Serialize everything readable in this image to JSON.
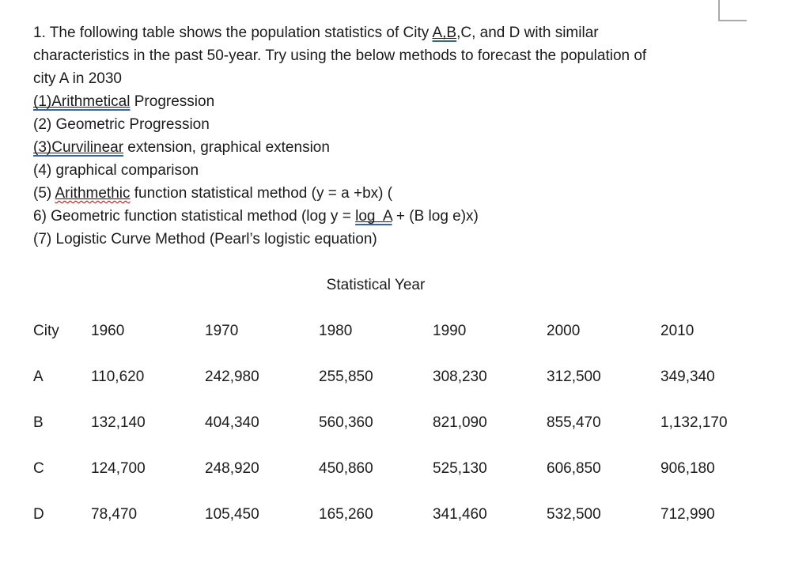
{
  "page": {
    "background": "#ffffff",
    "text_color": "#1b1b1b"
  },
  "colors": {
    "grammar_underline": "#3565a9",
    "spelling_squiggle": "#c00000",
    "corner_mark": "#a9a9a9"
  },
  "question": {
    "lines": [
      {
        "segments": [
          {
            "t": "1. The following table shows the population statistics of City "
          },
          {
            "t": "A,B",
            "style": "grammar"
          },
          {
            "t": ",C, and D with similar"
          }
        ]
      },
      {
        "segments": [
          {
            "t": "characteristics in the past 50-year. Try using the below methods to forecast the population of"
          }
        ]
      },
      {
        "segments": [
          {
            "t": "city A in 2030"
          }
        ]
      },
      {
        "segments": [
          {
            "t": "(1)Arithmetical",
            "style": "grammar"
          },
          {
            "t": " Progression"
          }
        ]
      },
      {
        "segments": [
          {
            "t": "(2) Geometric Progression"
          }
        ]
      },
      {
        "segments": [
          {
            "t": "(3)Curvilinear",
            "style": "grammar"
          },
          {
            "t": " extension, graphical extension"
          }
        ]
      },
      {
        "segments": [
          {
            "t": "(4) graphical comparison"
          }
        ]
      },
      {
        "segments": [
          {
            "t": "(5) "
          },
          {
            "t": "Arithmethic",
            "style": "spelling"
          },
          {
            "t": " function statistical method (y = a +bx) ("
          }
        ]
      },
      {
        "segments": [
          {
            "t": "6) Geometric function statistical method (log y = "
          },
          {
            "t": "log  A",
            "style": "grammar"
          },
          {
            "t": " + (B log e)x)"
          }
        ]
      },
      {
        "segments": [
          {
            "t": "(7) Logistic Curve Method (Pearl’s logistic equation)"
          }
        ]
      }
    ]
  },
  "table": {
    "title": "Statistical Year",
    "columns": [
      "City",
      "1960",
      "1970",
      "1980",
      "1990",
      "2000",
      "2010"
    ],
    "rows": [
      {
        "city": "A",
        "values": [
          "110,620",
          "242,980",
          "255,850",
          "308,230",
          "312,500",
          "349,340"
        ]
      },
      {
        "city": "B",
        "values": [
          "132,140",
          "404,340",
          "560,360",
          "821,090",
          "855,470",
          "1,132,170"
        ]
      },
      {
        "city": "C",
        "values": [
          "124,700",
          "248,920",
          "450,860",
          "525,130",
          "606,850",
          "906,180"
        ]
      },
      {
        "city": "D",
        "values": [
          "78,470",
          "105,450",
          "165,260",
          "341,460",
          "532,500",
          "712,990"
        ]
      }
    ]
  }
}
